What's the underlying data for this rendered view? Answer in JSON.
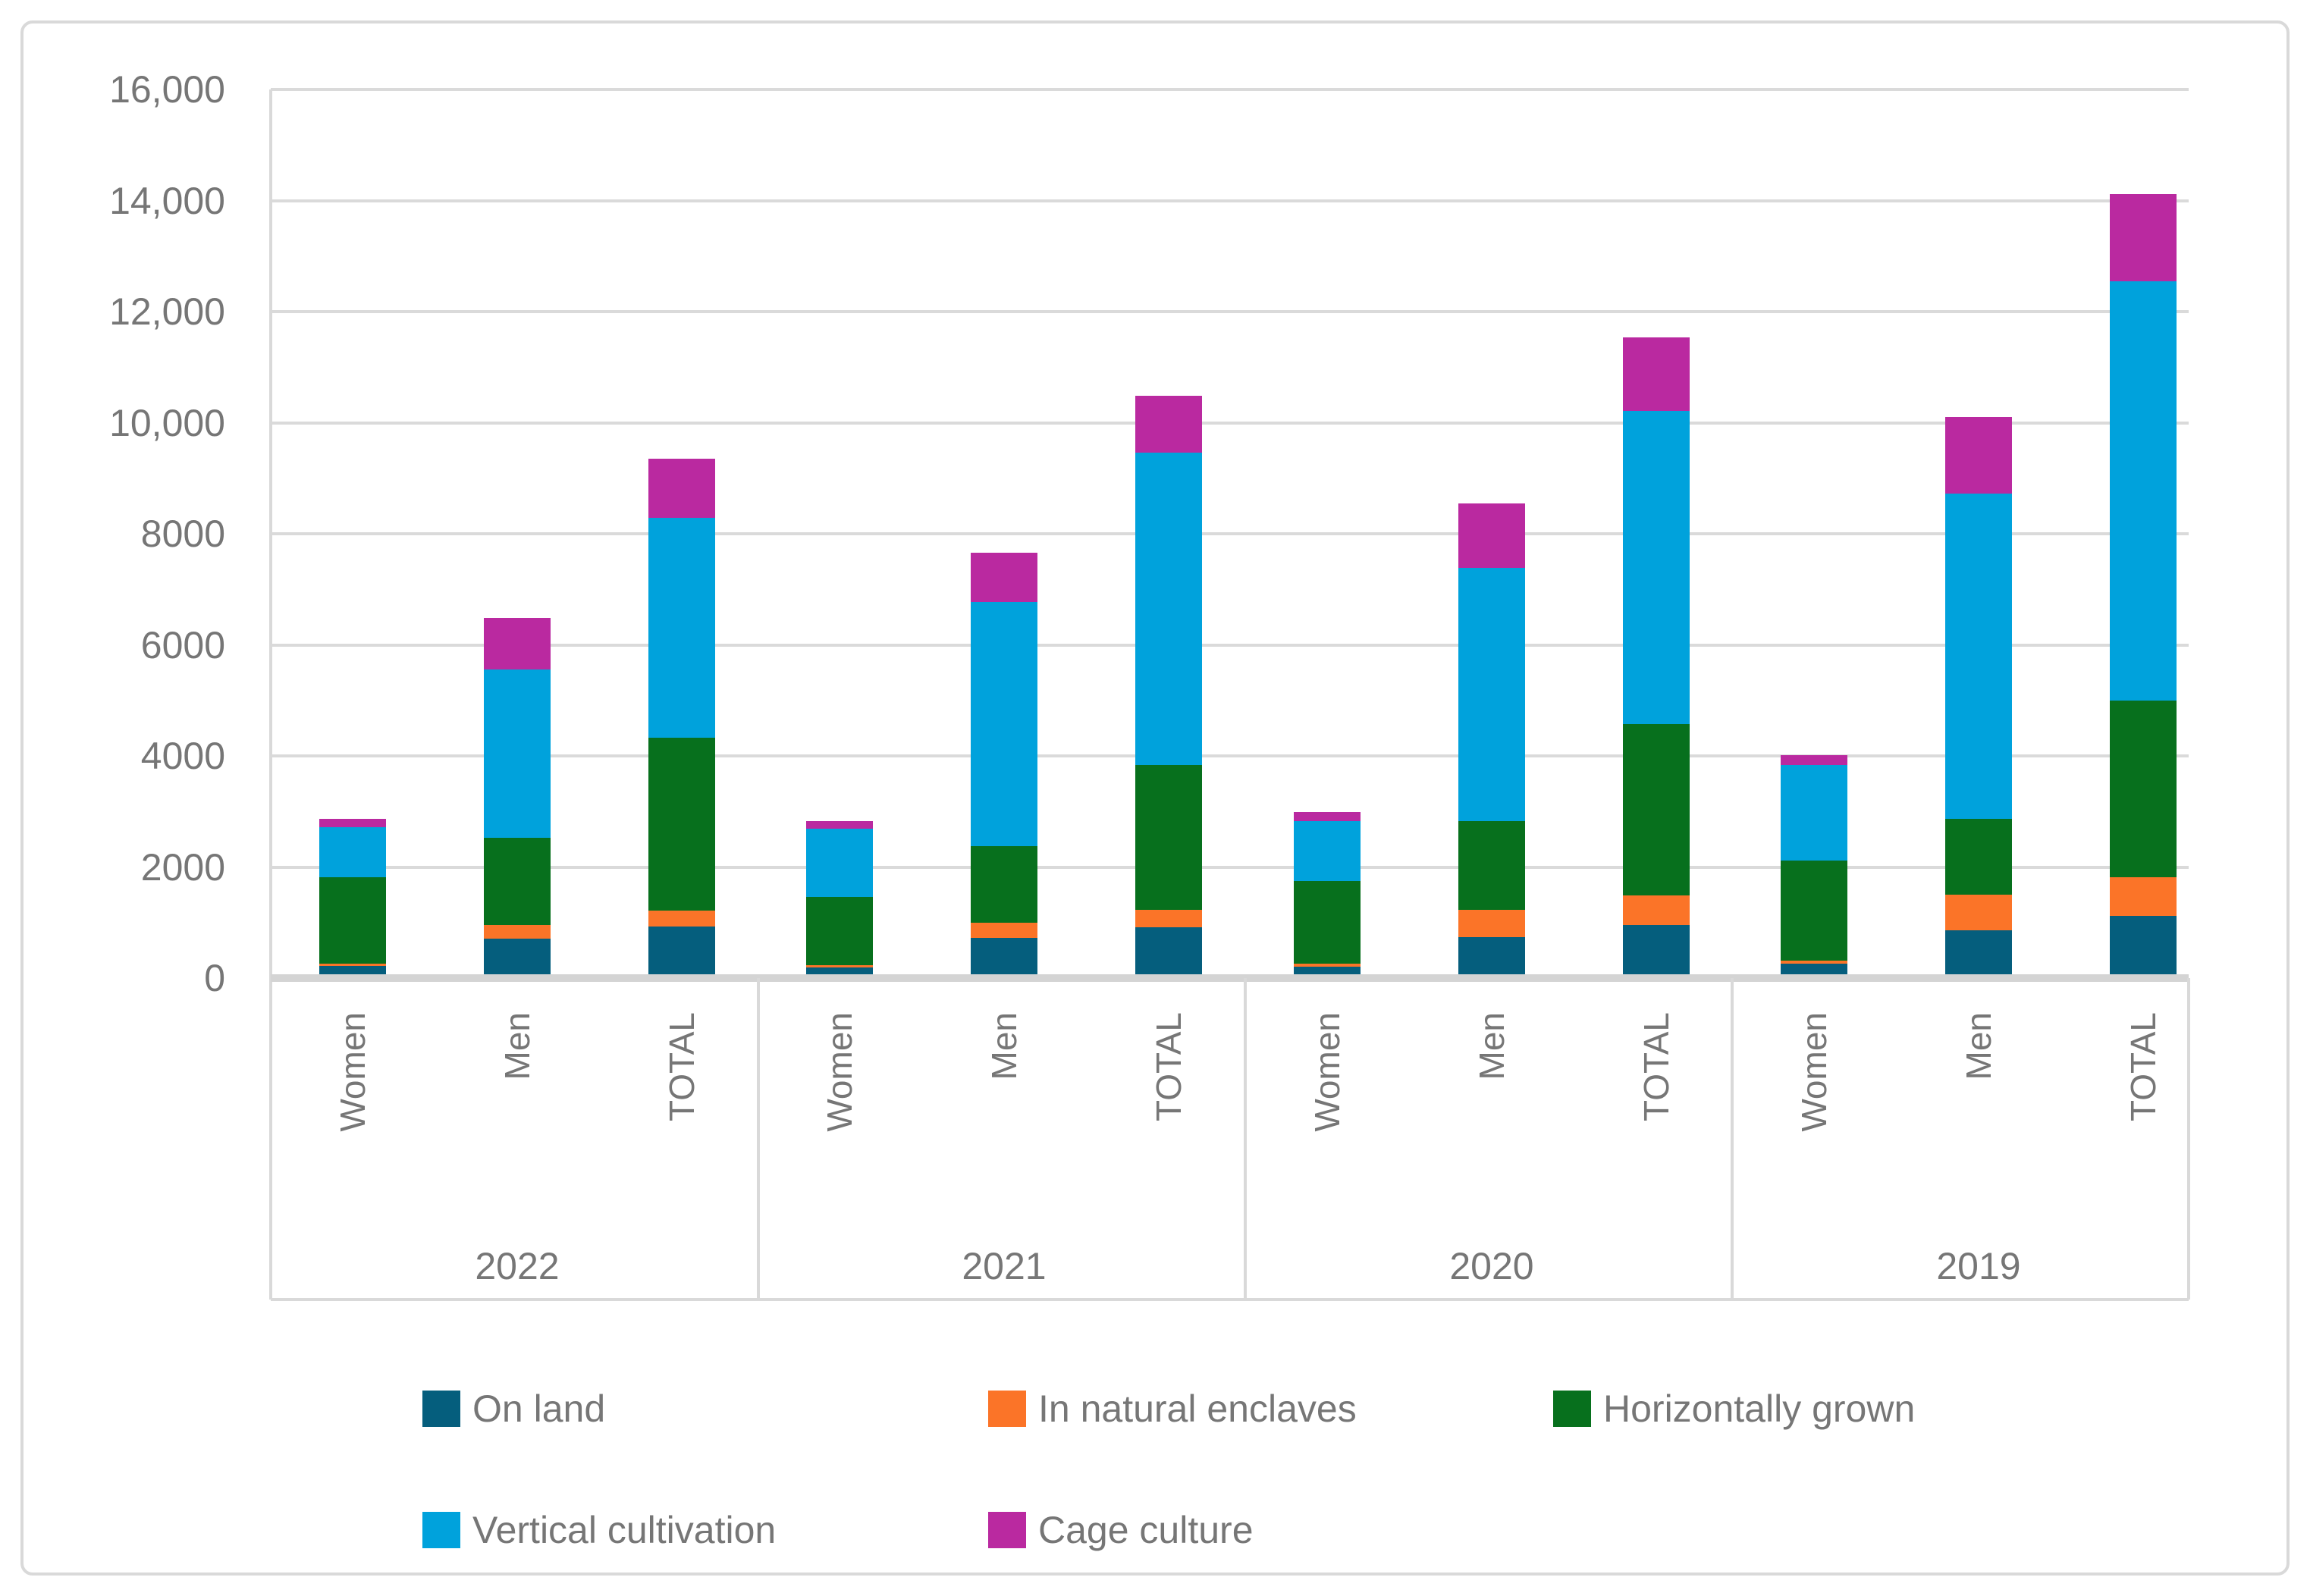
{
  "chart_data": {
    "type": "bar",
    "stacked": true,
    "title": "",
    "xlabel": "",
    "ylabel": "",
    "y_axis": {
      "ylim": [
        0,
        16000
      ],
      "grid": true,
      "ticks": [
        {
          "value": 0,
          "label": "0"
        },
        {
          "value": 2000,
          "label": "2000"
        },
        {
          "value": 4000,
          "label": "4000"
        },
        {
          "value": 6000,
          "label": "6000"
        },
        {
          "value": 8000,
          "label": "8000"
        },
        {
          "value": 10000,
          "label": "10,000"
        },
        {
          "value": 12000,
          "label": "12,000"
        },
        {
          "value": 14000,
          "label": "14,000"
        },
        {
          "value": 16000,
          "label": "16,000"
        }
      ]
    },
    "x_axis": {
      "groups": [
        "2022",
        "2021",
        "2020",
        "2019"
      ],
      "categories": [
        "Women",
        "Men",
        "TOTAL"
      ]
    },
    "series": [
      {
        "name": "On land",
        "color": "#055e7d",
        "values": [
          [
            220,
            710,
            930
          ],
          [
            190,
            720,
            910
          ],
          [
            210,
            740,
            950
          ],
          [
            260,
            860,
            1120
          ]
        ]
      },
      {
        "name": "In natural enclaves",
        "color": "#fb7428",
        "values": [
          [
            40,
            240,
            280
          ],
          [
            40,
            280,
            320
          ],
          [
            50,
            490,
            540
          ],
          [
            50,
            640,
            690
          ]
        ]
      },
      {
        "name": "Horizontally grown",
        "color": "#07701d",
        "values": [
          [
            1550,
            1570,
            3120
          ],
          [
            1230,
            1370,
            2600
          ],
          [
            1490,
            1600,
            3090
          ],
          [
            1810,
            1370,
            3180
          ]
        ]
      },
      {
        "name": "Vertical cultivation",
        "color": "#00a2dc",
        "values": [
          [
            910,
            3040,
            3950
          ],
          [
            1230,
            4400,
            5630
          ],
          [
            1080,
            4550,
            5630
          ],
          [
            1710,
            5850,
            7560
          ]
        ]
      },
      {
        "name": "Cage culture",
        "color": "#ba29a0",
        "values": [
          [
            150,
            920,
            1070
          ],
          [
            140,
            890,
            1030
          ],
          [
            160,
            1170,
            1330
          ],
          [
            190,
            1380,
            1570
          ]
        ]
      }
    ],
    "legend": {
      "position": "bottom",
      "entries": [
        "On land",
        "In natural enclaves",
        "Horizontally grown",
        "Vertical cultivation",
        "Cage culture"
      ]
    },
    "style": {
      "grid_color": "#dadada",
      "baseline_color": "#d4d4d4",
      "separator_color": "#d9d9d9",
      "border_color": "#d9d9d9",
      "text_color": "#767676"
    }
  }
}
